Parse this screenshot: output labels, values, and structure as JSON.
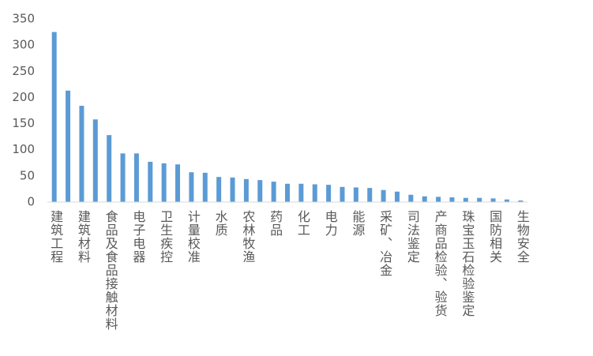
{
  "chart_data": {
    "type": "bar",
    "categories": [
      "建筑工程",
      null,
      "建筑材料",
      null,
      "食品及食品接触材料",
      null,
      "电子电器",
      null,
      "卫生疾控",
      null,
      "计量校准",
      null,
      "水质",
      null,
      "农林牧渔",
      null,
      "药品",
      null,
      "化工",
      null,
      "电力",
      null,
      "能源",
      null,
      "采矿、冶金",
      null,
      "司法鉴定",
      null,
      "产商品检验、验货",
      null,
      "珠宝玉石检验鉴定",
      null,
      "国防相关",
      null,
      "生物安全"
    ],
    "values": [
      325,
      213,
      184,
      158,
      128,
      93,
      93,
      77,
      74,
      72,
      57,
      56,
      48,
      47,
      44,
      42,
      39,
      35,
      35,
      34,
      33,
      29,
      28,
      27,
      23,
      20,
      14,
      11,
      10,
      9,
      8,
      8,
      7,
      5,
      3
    ],
    "color": "#5b9bd5",
    "ylim": [
      0,
      350
    ],
    "yticks": [
      0,
      50,
      100,
      150,
      200,
      250,
      300,
      350
    ],
    "grid": false
  }
}
